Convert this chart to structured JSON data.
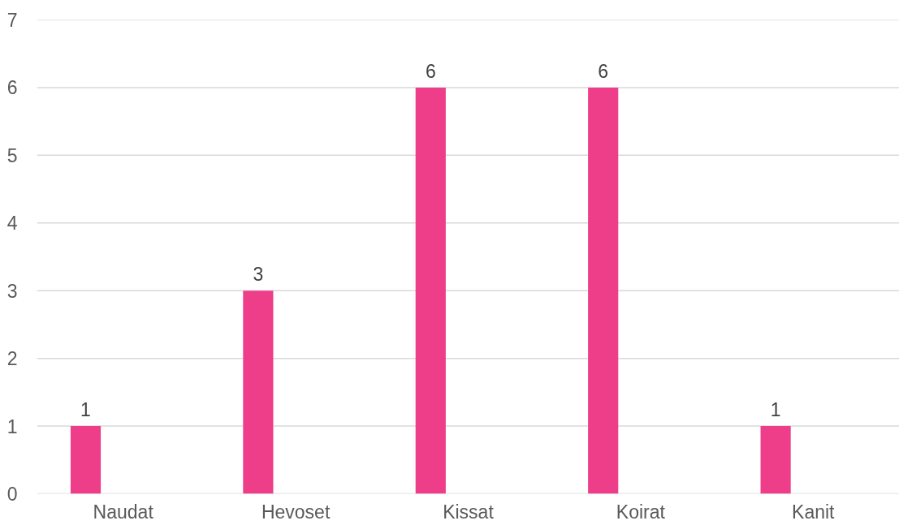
{
  "chart_data": {
    "type": "bar",
    "categories": [
      "Naudat",
      "Hevoset",
      "Kissat",
      "Koirat",
      "Kanit"
    ],
    "series": [
      {
        "color": "#ee3e8a",
        "values": [
          1,
          3,
          6,
          6,
          1
        ]
      },
      {
        "values": [
          null,
          null,
          null,
          null,
          null
        ]
      }
    ],
    "ylim": [
      0,
      7
    ],
    "yticks": [
      0,
      1,
      2,
      3,
      4,
      5,
      6,
      7
    ],
    "grid": "y",
    "data_labels": true
  }
}
